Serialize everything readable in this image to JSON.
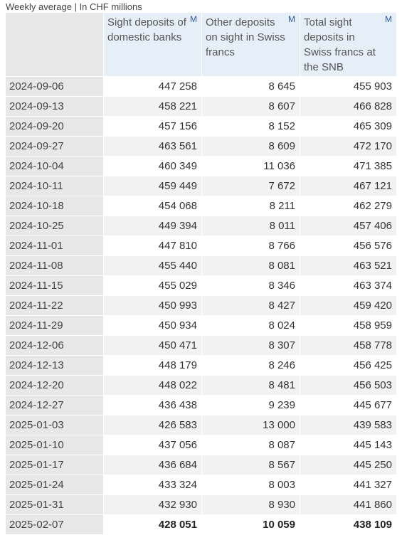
{
  "caption": "Weekly average | In CHF millions",
  "columns": [
    {
      "label": "Sight deposits of domestic banks",
      "marker": "M"
    },
    {
      "label": "Other deposits on sight in Swiss francs",
      "marker": "M"
    },
    {
      "label": "Total sight deposits in Swiss francs at the SNB",
      "marker": "M"
    }
  ],
  "rows": [
    [
      "2024-09-06",
      "447 258",
      "8 645",
      "455 903"
    ],
    [
      "2024-09-13",
      "458 221",
      "8 607",
      "466 828"
    ],
    [
      "2024-09-20",
      "457 156",
      "8 152",
      "465 309"
    ],
    [
      "2024-09-27",
      "463 561",
      "8 609",
      "472 170"
    ],
    [
      "2024-10-04",
      "460 349",
      "11 036",
      "471 385"
    ],
    [
      "2024-10-11",
      "459 449",
      "7 672",
      "467 121"
    ],
    [
      "2024-10-18",
      "454 068",
      "8 211",
      "462 279"
    ],
    [
      "2024-10-25",
      "449 394",
      "8 011",
      "457 406"
    ],
    [
      "2024-11-01",
      "447 810",
      "8 766",
      "456 576"
    ],
    [
      "2024-11-08",
      "455 440",
      "8 081",
      "463 521"
    ],
    [
      "2024-11-15",
      "455 029",
      "8 346",
      "463 374"
    ],
    [
      "2024-11-22",
      "450 993",
      "8 427",
      "459 420"
    ],
    [
      "2024-11-29",
      "450 934",
      "8 024",
      "458 959"
    ],
    [
      "2024-12-06",
      "450 471",
      "8 307",
      "458 778"
    ],
    [
      "2024-12-13",
      "448 179",
      "8 246",
      "456 425"
    ],
    [
      "2024-12-20",
      "448 022",
      "8 481",
      "456 503"
    ],
    [
      "2024-12-27",
      "436 438",
      "9 239",
      "445 677"
    ],
    [
      "2025-01-03",
      "426 583",
      "13 000",
      "439 583"
    ],
    [
      "2025-01-10",
      "437 056",
      "8 087",
      "445 143"
    ],
    [
      "2025-01-17",
      "436 684",
      "8 567",
      "445 250"
    ],
    [
      "2025-01-24",
      "433 324",
      "8 003",
      "441 327"
    ],
    [
      "2025-01-31",
      "432 930",
      "8 930",
      "441 860"
    ],
    [
      "2025-02-07",
      "428 051",
      "10 059",
      "438 109"
    ]
  ]
}
